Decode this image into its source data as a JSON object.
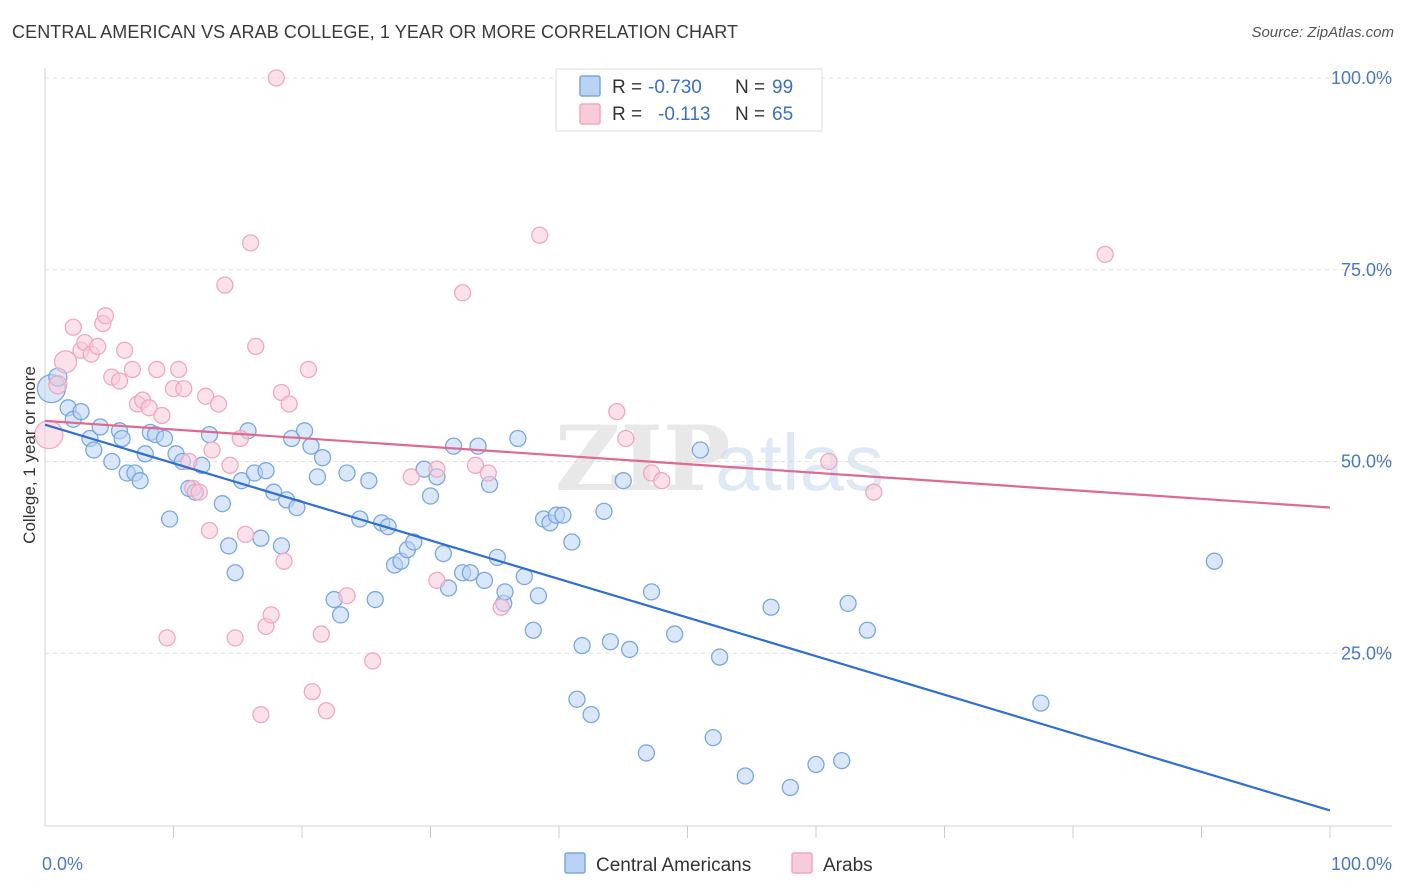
{
  "title": "CENTRAL AMERICAN VS ARAB COLLEGE, 1 YEAR OR MORE CORRELATION CHART",
  "source": "Source: ZipAtlas.com",
  "chart_data": {
    "type": "scatter",
    "xlabel": "",
    "ylabel": "College, 1 year or more",
    "xlim": [
      0,
      100
    ],
    "ylim": [
      0,
      100
    ],
    "x_tick_labels": [
      {
        "value": 0,
        "label": "0.0%"
      },
      {
        "value": 100,
        "label": "100.0%"
      }
    ],
    "y_tick_labels": [
      {
        "value": 25,
        "label": "25.0%"
      },
      {
        "value": 50,
        "label": "50.0%"
      },
      {
        "value": 75,
        "label": "75.0%"
      },
      {
        "value": 100,
        "label": "100.0%"
      }
    ],
    "grid": true,
    "legend_position": "top-center",
    "watermark": "ZIPatlas",
    "stats_legend": [
      {
        "r_label": "R =",
        "r_value": "-0.730",
        "n_label": "N =",
        "n_value": "99"
      },
      {
        "r_label": "R =",
        "r_value": "-0.113",
        "n_label": "N =",
        "n_value": "65"
      }
    ],
    "series": [
      {
        "name": "Central Americans",
        "color": "#7aa7e0",
        "line_color": "#2f6fcf",
        "trend": {
          "x": [
            0,
            100
          ],
          "y": [
            54.8,
            4.5
          ]
        },
        "points": [
          {
            "x": 0.5,
            "y": 59.5,
            "r": 14
          },
          {
            "x": 1.0,
            "y": 61.0,
            "r": 9
          },
          {
            "x": 1.8,
            "y": 57.0
          },
          {
            "x": 2.2,
            "y": 55.5
          },
          {
            "x": 2.8,
            "y": 56.5
          },
          {
            "x": 3.5,
            "y": 53.0
          },
          {
            "x": 3.8,
            "y": 51.5
          },
          {
            "x": 4.3,
            "y": 54.5
          },
          {
            "x": 5.2,
            "y": 50.0
          },
          {
            "x": 5.8,
            "y": 54.0
          },
          {
            "x": 6.0,
            "y": 53.0
          },
          {
            "x": 6.4,
            "y": 48.5
          },
          {
            "x": 7.0,
            "y": 48.5
          },
          {
            "x": 7.4,
            "y": 47.5
          },
          {
            "x": 7.8,
            "y": 51.0
          },
          {
            "x": 8.2,
            "y": 53.8
          },
          {
            "x": 8.6,
            "y": 53.5
          },
          {
            "x": 9.3,
            "y": 53.0
          },
          {
            "x": 9.7,
            "y": 42.5
          },
          {
            "x": 10.2,
            "y": 51.0
          },
          {
            "x": 10.7,
            "y": 50.0
          },
          {
            "x": 11.2,
            "y": 46.5
          },
          {
            "x": 11.7,
            "y": 46.0
          },
          {
            "x": 12.2,
            "y": 49.5
          },
          {
            "x": 12.8,
            "y": 53.5
          },
          {
            "x": 13.8,
            "y": 44.5
          },
          {
            "x": 14.3,
            "y": 39.0
          },
          {
            "x": 14.8,
            "y": 35.5
          },
          {
            "x": 15.3,
            "y": 47.5
          },
          {
            "x": 15.8,
            "y": 54.0
          },
          {
            "x": 16.3,
            "y": 48.5
          },
          {
            "x": 16.8,
            "y": 40.0
          },
          {
            "x": 17.2,
            "y": 48.8
          },
          {
            "x": 17.8,
            "y": 46.0
          },
          {
            "x": 18.4,
            "y": 39.0
          },
          {
            "x": 18.8,
            "y": 45.0
          },
          {
            "x": 19.2,
            "y": 53.0
          },
          {
            "x": 19.6,
            "y": 44.0
          },
          {
            "x": 20.2,
            "y": 54.0
          },
          {
            "x": 20.7,
            "y": 52.0
          },
          {
            "x": 21.2,
            "y": 48.0
          },
          {
            "x": 21.6,
            "y": 50.5
          },
          {
            "x": 22.5,
            "y": 32.0
          },
          {
            "x": 23.0,
            "y": 30.0
          },
          {
            "x": 23.5,
            "y": 48.5
          },
          {
            "x": 24.5,
            "y": 42.5
          },
          {
            "x": 25.2,
            "y": 47.5
          },
          {
            "x": 25.7,
            "y": 32.0
          },
          {
            "x": 26.2,
            "y": 42.0
          },
          {
            "x": 26.7,
            "y": 41.5
          },
          {
            "x": 27.2,
            "y": 36.5
          },
          {
            "x": 27.7,
            "y": 37.0
          },
          {
            "x": 28.2,
            "y": 38.5
          },
          {
            "x": 28.7,
            "y": 39.5
          },
          {
            "x": 29.5,
            "y": 49.0
          },
          {
            "x": 30.0,
            "y": 45.5
          },
          {
            "x": 30.5,
            "y": 48.0
          },
          {
            "x": 31.0,
            "y": 38.0
          },
          {
            "x": 31.4,
            "y": 33.5
          },
          {
            "x": 31.8,
            "y": 52.0
          },
          {
            "x": 32.5,
            "y": 35.5
          },
          {
            "x": 33.1,
            "y": 35.5
          },
          {
            "x": 33.7,
            "y": 52.0
          },
          {
            "x": 34.2,
            "y": 34.5
          },
          {
            "x": 34.6,
            "y": 47.0
          },
          {
            "x": 35.2,
            "y": 37.5
          },
          {
            "x": 35.7,
            "y": 31.5
          },
          {
            "x": 35.8,
            "y": 33.0
          },
          {
            "x": 36.8,
            "y": 53.0
          },
          {
            "x": 37.3,
            "y": 35.0
          },
          {
            "x": 38.0,
            "y": 28.0
          },
          {
            "x": 38.4,
            "y": 32.5
          },
          {
            "x": 38.8,
            "y": 42.5
          },
          {
            "x": 39.3,
            "y": 42.0
          },
          {
            "x": 39.8,
            "y": 43.0
          },
          {
            "x": 40.3,
            "y": 43.0
          },
          {
            "x": 41.0,
            "y": 39.5
          },
          {
            "x": 41.4,
            "y": 19.0
          },
          {
            "x": 41.8,
            "y": 26.0
          },
          {
            "x": 42.5,
            "y": 17.0
          },
          {
            "x": 43.5,
            "y": 43.5
          },
          {
            "x": 44.0,
            "y": 26.5
          },
          {
            "x": 45.0,
            "y": 47.5
          },
          {
            "x": 45.5,
            "y": 25.5
          },
          {
            "x": 46.8,
            "y": 12.0
          },
          {
            "x": 47.2,
            "y": 33.0
          },
          {
            "x": 49.0,
            "y": 27.5
          },
          {
            "x": 51.0,
            "y": 51.5
          },
          {
            "x": 52.5,
            "y": 24.5
          },
          {
            "x": 52.0,
            "y": 14.0
          },
          {
            "x": 54.5,
            "y": 9.0
          },
          {
            "x": 56.5,
            "y": 31.0
          },
          {
            "x": 58.0,
            "y": 7.5
          },
          {
            "x": 60.0,
            "y": 10.5
          },
          {
            "x": 62.0,
            "y": 11.0
          },
          {
            "x": 62.5,
            "y": 31.5
          },
          {
            "x": 64.0,
            "y": 28.0
          },
          {
            "x": 77.5,
            "y": 18.5
          },
          {
            "x": 91.0,
            "y": 37.0
          }
        ]
      },
      {
        "name": "Arabs",
        "color": "#f2a7c0",
        "line_color": "#e0698f",
        "trend": {
          "x": [
            0,
            100
          ],
          "y": [
            55.3,
            44.0
          ]
        },
        "points": [
          {
            "x": 0.3,
            "y": 53.5,
            "r": 14
          },
          {
            "x": 1.0,
            "y": 60.0,
            "r": 9
          },
          {
            "x": 1.6,
            "y": 63.0,
            "r": 11
          },
          {
            "x": 2.2,
            "y": 67.5
          },
          {
            "x": 2.8,
            "y": 64.5
          },
          {
            "x": 3.1,
            "y": 65.5
          },
          {
            "x": 3.6,
            "y": 64.0
          },
          {
            "x": 4.1,
            "y": 65.0
          },
          {
            "x": 4.5,
            "y": 68.0
          },
          {
            "x": 4.7,
            "y": 69.0
          },
          {
            "x": 5.2,
            "y": 61.0
          },
          {
            "x": 5.8,
            "y": 60.5
          },
          {
            "x": 6.2,
            "y": 64.5
          },
          {
            "x": 6.8,
            "y": 62.0
          },
          {
            "x": 7.2,
            "y": 57.5
          },
          {
            "x": 7.6,
            "y": 58.0
          },
          {
            "x": 8.1,
            "y": 57.0
          },
          {
            "x": 8.7,
            "y": 62.0
          },
          {
            "x": 9.1,
            "y": 56.0
          },
          {
            "x": 9.5,
            "y": 27.0
          },
          {
            "x": 10.0,
            "y": 59.5
          },
          {
            "x": 10.4,
            "y": 62.0
          },
          {
            "x": 10.8,
            "y": 59.5
          },
          {
            "x": 11.2,
            "y": 50.0
          },
          {
            "x": 11.5,
            "y": 46.5
          },
          {
            "x": 12.0,
            "y": 46.0
          },
          {
            "x": 12.5,
            "y": 58.5
          },
          {
            "x": 12.8,
            "y": 41.0
          },
          {
            "x": 13.0,
            "y": 51.5
          },
          {
            "x": 13.5,
            "y": 57.5
          },
          {
            "x": 14.0,
            "y": 73.0
          },
          {
            "x": 14.4,
            "y": 49.5
          },
          {
            "x": 14.8,
            "y": 27.0
          },
          {
            "x": 15.2,
            "y": 53.0
          },
          {
            "x": 15.6,
            "y": 40.5
          },
          {
            "x": 16.0,
            "y": 78.5
          },
          {
            "x": 16.4,
            "y": 65.0
          },
          {
            "x": 16.8,
            "y": 17.0
          },
          {
            "x": 17.2,
            "y": 28.5
          },
          {
            "x": 17.6,
            "y": 30.0
          },
          {
            "x": 18.0,
            "y": 100.0
          },
          {
            "x": 18.4,
            "y": 59.0
          },
          {
            "x": 18.6,
            "y": 37.0
          },
          {
            "x": 19.0,
            "y": 57.5
          },
          {
            "x": 20.5,
            "y": 62.0
          },
          {
            "x": 20.8,
            "y": 20.0
          },
          {
            "x": 21.5,
            "y": 27.5
          },
          {
            "x": 21.9,
            "y": 17.5
          },
          {
            "x": 23.5,
            "y": 32.5
          },
          {
            "x": 25.5,
            "y": 24.0
          },
          {
            "x": 28.5,
            "y": 48.0
          },
          {
            "x": 30.5,
            "y": 49.0
          },
          {
            "x": 30.5,
            "y": 34.5
          },
          {
            "x": 32.5,
            "y": 72.0
          },
          {
            "x": 33.5,
            "y": 49.5
          },
          {
            "x": 34.5,
            "y": 48.5
          },
          {
            "x": 35.5,
            "y": 31.0
          },
          {
            "x": 38.5,
            "y": 79.5
          },
          {
            "x": 44.5,
            "y": 56.5
          },
          {
            "x": 45.2,
            "y": 53.0
          },
          {
            "x": 47.2,
            "y": 48.5
          },
          {
            "x": 48.0,
            "y": 47.5
          },
          {
            "x": 61.0,
            "y": 50.0
          },
          {
            "x": 64.5,
            "y": 46.0
          },
          {
            "x": 82.5,
            "y": 77.0
          }
        ]
      }
    ]
  }
}
